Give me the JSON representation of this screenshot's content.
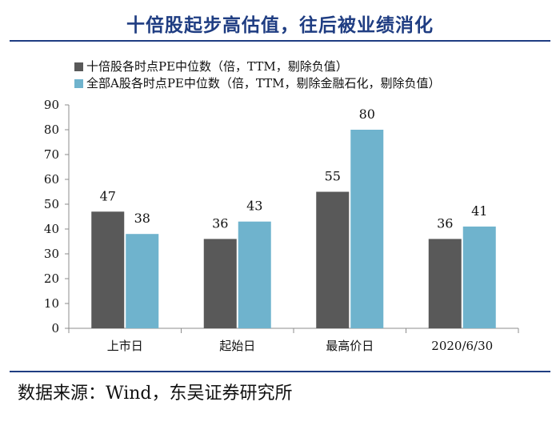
{
  "page": {
    "title": "十倍股起步高估值，往后被业绩消化",
    "source": "数据来源：Wind，东吴证券研究所"
  },
  "chart_data": {
    "type": "bar",
    "categories": [
      "上市日",
      "起始日",
      "最高价日",
      "2020/6/30"
    ],
    "series": [
      {
        "name": "十倍股各时点PE中位数（倍，TTM，剔除负值）",
        "values": [
          47,
          36,
          55,
          36
        ],
        "color": "#595959"
      },
      {
        "name": "全部A股各时点PE中位数（倍，TTM，剔除金融石化，剔除负值）",
        "values": [
          38,
          43,
          80,
          41
        ],
        "color": "#6fb3cd"
      }
    ],
    "ylim": [
      0,
      90
    ],
    "yticks": [
      0,
      10,
      20,
      30,
      40,
      50,
      60,
      70,
      80,
      90
    ],
    "legend_position": "top-left",
    "grid": false,
    "data_labels": true
  }
}
